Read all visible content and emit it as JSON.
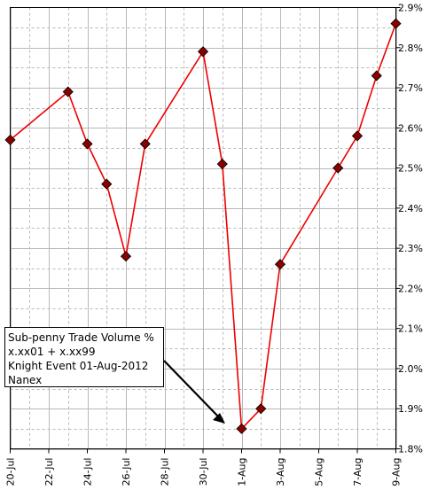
{
  "chart_data": {
    "type": "line",
    "title": "",
    "xlabel": "",
    "ylabel": "",
    "x_tick_labels": [
      "20-Jul",
      "22-Jul",
      "24-Jul",
      "26-Jul",
      "28-Jul",
      "30-Jul",
      "1-Aug",
      "3-Aug",
      "5-Aug",
      "7-Aug",
      "9-Aug"
    ],
    "y_tick_labels": [
      "1.8%",
      "1.9%",
      "2.0%",
      "2.1%",
      "2.2%",
      "2.3%",
      "2.4%",
      "2.5%",
      "2.6%",
      "2.7%",
      "2.8%",
      "2.9%"
    ],
    "ylim": [
      1.8,
      2.9
    ],
    "grid": true,
    "y_axis_side": "right",
    "line_color": "#ee0000",
    "marker_color": "#880000",
    "series": [
      {
        "x": [
          "20-Jul",
          "23-Jul",
          "24-Jul",
          "25-Jul",
          "26-Jul",
          "27-Jul",
          "30-Jul",
          "31-Jul",
          "1-Aug",
          "2-Aug",
          "3-Aug",
          "6-Aug",
          "7-Aug",
          "8-Aug",
          "9-Aug"
        ],
        "values": [
          2.57,
          2.69,
          2.56,
          2.46,
          2.28,
          2.56,
          2.79,
          2.51,
          1.85,
          1.9,
          2.26,
          2.5,
          2.58,
          2.73,
          2.86
        ]
      }
    ],
    "annotation": {
      "lines": [
        "Sub-penny Trade Volume %",
        "x.xx01 + x.xx99",
        "Knight Event 01-Aug-2012",
        "Nanex"
      ],
      "arrow_target": "1-Aug"
    }
  }
}
